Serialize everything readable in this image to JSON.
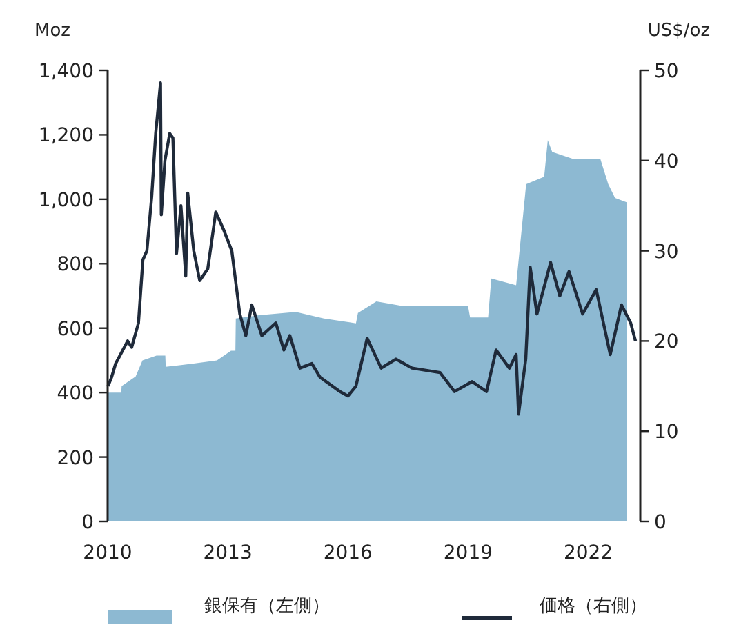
{
  "chart_data": {
    "type": "area",
    "ylabel": "Moz",
    "y2label": "US$/oz",
    "legend": "bottom",
    "xlim": [
      2010,
      2023.3
    ],
    "xticks": [
      2010,
      2013,
      2016,
      2019,
      2022
    ],
    "ylim": [
      0,
      1400
    ],
    "yticks": [
      0,
      200,
      400,
      600,
      800,
      {
        "value": 1000,
        "label": "1,000"
      },
      {
        "value": 1200,
        "label": "1,200"
      },
      {
        "value": 1400,
        "label": "1,400"
      }
    ],
    "y2lim": [
      0,
      50
    ],
    "y2ticks": [
      0,
      10,
      20,
      30,
      40,
      50
    ],
    "series": [
      {
        "name": "銀保有（左側）",
        "color": "#8db9d2",
        "x": [
          2010.0,
          2010.34,
          2010.35,
          2010.7,
          2010.87,
          2011.22,
          2011.44,
          2011.45,
          2012.15,
          2012.73,
          2013.08,
          2013.19,
          2013.2,
          2013.78,
          2014.7,
          2015.4,
          2016.2,
          2016.25,
          2016.71,
          2017.4,
          2019.0,
          2019.05,
          2019.5,
          2019.58,
          2020.2,
          2020.45,
          2020.9,
          2020.99,
          2021.1,
          2021.6,
          2022.3,
          2022.5,
          2022.67,
          2022.97
        ],
        "values": [
          400,
          400,
          420,
          450,
          500,
          515,
          515,
          480,
          490,
          500,
          530,
          530,
          630,
          640,
          650,
          630,
          615,
          647,
          683,
          668,
          668,
          633,
          633,
          754,
          733,
          1047,
          1070,
          1183,
          1147,
          1126,
          1126,
          1047,
          1004,
          990
        ]
      },
      {
        "name": "価格（右側）",
        "type": "line",
        "axis": "y2",
        "color": "#1f2a3a",
        "x": [
          2010.01,
          2010.1,
          2010.2,
          2010.5,
          2010.6,
          2010.77,
          2010.88,
          2010.98,
          2011.1,
          2011.2,
          2011.32,
          2011.34,
          2011.43,
          2011.55,
          2011.63,
          2011.72,
          2011.83,
          2011.95,
          2012.0,
          2012.15,
          2012.3,
          2012.5,
          2012.7,
          2012.9,
          2013.1,
          2013.3,
          2013.45,
          2013.6,
          2013.85,
          2014.2,
          2014.4,
          2014.55,
          2014.8,
          2015.1,
          2015.3,
          2015.8,
          2016.0,
          2016.2,
          2016.48,
          2016.83,
          2017.2,
          2017.6,
          2018.3,
          2018.66,
          2019.1,
          2019.46,
          2019.7,
          2020.03,
          2020.2,
          2020.26,
          2020.44,
          2020.55,
          2020.72,
          2021.06,
          2021.29,
          2021.52,
          2021.86,
          2022.2,
          2022.55,
          2022.83,
          2023.06,
          2023.18
        ],
        "values": [
          15,
          16,
          17.5,
          20,
          19.3,
          22,
          29,
          30,
          36,
          43,
          48.6,
          34,
          40,
          43,
          42.5,
          29.7,
          35,
          27.2,
          36.4,
          30,
          26.7,
          28,
          34.3,
          32.3,
          30,
          23,
          20.6,
          24,
          20.6,
          22,
          19,
          20.6,
          17,
          17.5,
          16,
          14.4,
          13.9,
          15,
          20.3,
          17,
          18,
          17,
          16.5,
          14.4,
          15.5,
          14.4,
          19,
          17,
          18.5,
          11.9,
          18,
          28.2,
          23,
          28.7,
          25,
          27.7,
          23,
          25.7,
          18.5,
          24,
          22,
          20
        ]
      }
    ]
  }
}
